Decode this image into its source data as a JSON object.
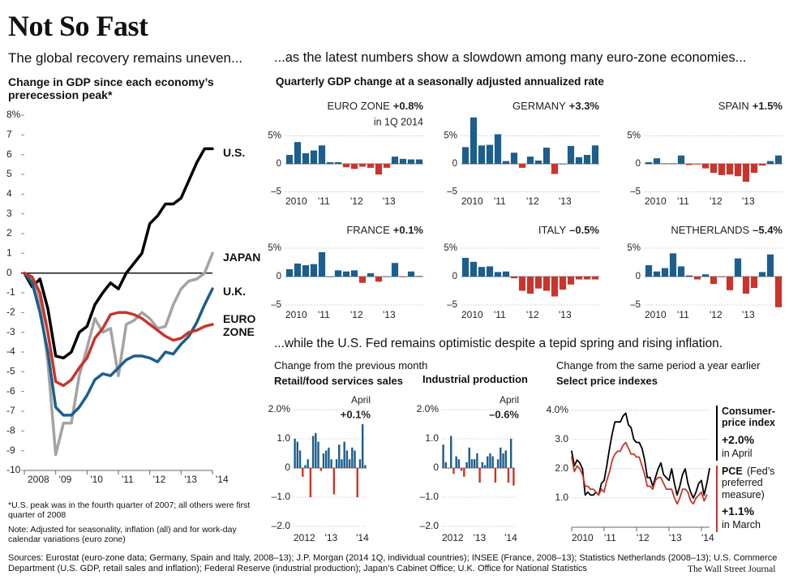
{
  "page": {
    "title": "Not So Fast",
    "subtitle_left": "The global recovery remains uneven...",
    "subtitle_middle": "...as the latest numbers show a slowdown among many euro-zone economies...",
    "section_title": "Quarterly GDP change at a seasonally adjusted annualized rate",
    "subtitle_bottom": "...while the U.S. Fed remains optimistic despite a tepid spring and rising inflation.",
    "monthly_heading": "Change from the previous month",
    "yearly_heading": "Change from the same period a year earlier",
    "footnote": "*U.S. peak was in the fourth quarter of 2007; all others were first quarter of 2008",
    "note": "Note: Adjusted for seasonality, inflation (all) and for work-day calendar variations (euro zone)",
    "sources": "Sources: Eurostat (euro-zone data; Germany, Spain and Italy, 2008–13); J.P. Morgan (2014 1Q, individual countries); INSEE (France, 2008–13); Statistics Netherlands (2008–13); U.S. Commerce Department (U.S. GDP, retail sales and inflation); Federal Reserve (industrial production); Japan’s Cabinet Office; U.K. Office for National Statistics",
    "credit": "The Wall Street Journal"
  },
  "chart_data": [
    {
      "type": "line",
      "title": "Change in GDP since each economy’s prerecession peak*",
      "categories": [
        "2008",
        null,
        null,
        null,
        "'09",
        null,
        null,
        null,
        "'10",
        null,
        null,
        null,
        "'11",
        null,
        null,
        null,
        "'12",
        null,
        null,
        null,
        "'13",
        null,
        null,
        null,
        "'14"
      ],
      "ylim": [
        -10,
        8
      ],
      "yticks": [
        {
          "value": 8,
          "label": "8%"
        },
        7,
        6,
        5,
        4,
        3,
        2,
        1,
        0,
        -1,
        -2,
        -3,
        -4,
        -5,
        -6,
        -7,
        -8,
        -9,
        -10
      ],
      "series": [
        {
          "name": "U.S.",
          "color": "#000000",
          "values": [
            0,
            -0.7,
            -0.3,
            -1.8,
            -4.2,
            -4.3,
            -4.0,
            -3.0,
            -2.7,
            -1.6,
            -1.0,
            -0.5,
            -0.8,
            0.0,
            0.5,
            1.0,
            2.5,
            2.9,
            3.5,
            3.5,
            3.8,
            4.7,
            5.6,
            6.3,
            6.3
          ]
        },
        {
          "name": "JAPAN",
          "color": "#a3a3a3",
          "values": [
            0,
            -0.3,
            -1.5,
            -4.5,
            -9.2,
            -7.6,
            -7.6,
            -5.2,
            -3.8,
            -2.3,
            -3.0,
            -2.8,
            -5.2,
            -2.6,
            -2.4,
            -2.0,
            -2.3,
            -2.8,
            -2.7,
            -1.6,
            -0.8,
            -0.4,
            -0.3,
            0.0,
            1.0
          ]
        },
        {
          "name": "U.K.",
          "color": "#1d5e8c",
          "values": [
            0,
            -0.5,
            -2.0,
            -4.0,
            -6.8,
            -7.2,
            -7.2,
            -6.8,
            -6.2,
            -5.4,
            -5.1,
            -5.2,
            -4.8,
            -4.4,
            -4.2,
            -4.2,
            -4.3,
            -4.5,
            -4.0,
            -4.1,
            -3.6,
            -3.2,
            -2.5,
            -1.6,
            -0.8
          ]
        },
        {
          "name": "EURO ZONE",
          "color": "#c9342c",
          "values": [
            0,
            -0.2,
            -1.0,
            -3.0,
            -5.5,
            -5.7,
            -5.4,
            -4.8,
            -4.3,
            -3.3,
            -2.8,
            -2.1,
            -2.0,
            -2.0,
            -2.1,
            -2.3,
            -2.6,
            -2.9,
            -3.2,
            -3.4,
            -3.3,
            -3.0,
            -2.9,
            -2.7,
            -2.6
          ]
        }
      ]
    },
    {
      "type": "bar",
      "title": "EURO ZONE",
      "value_label": "+0.8%",
      "note": "in 1Q 2014",
      "categories": [
        "2010",
        null,
        null,
        null,
        "'11",
        null,
        null,
        null,
        "'12",
        null,
        null,
        null,
        "'13",
        null,
        null,
        null,
        null
      ],
      "values": [
        1.6,
        3.9,
        1.9,
        2.4,
        3.3,
        0.3,
        0.3,
        -0.6,
        -0.9,
        -0.5,
        -0.7,
        -1.9,
        -0.7,
        1.3,
        0.9,
        0.8,
        0.8
      ],
      "color": "#1d5e8c",
      "negative_color": "#c9342c",
      "ylim": [
        -5.5,
        8.5
      ],
      "yticks": [
        {
          "value": 5,
          "label": "5%"
        },
        0,
        {
          "value": -5,
          "label": "–5"
        }
      ],
      "grid": true
    },
    {
      "type": "bar",
      "title": "GERMANY",
      "value_label": "+3.3%",
      "categories": [
        "2010",
        null,
        null,
        null,
        "'11",
        null,
        null,
        null,
        "'12",
        null,
        null,
        null,
        "'13",
        null,
        null,
        null,
        null
      ],
      "values": [
        3.0,
        8.3,
        3.3,
        3.4,
        5.3,
        0.5,
        2.0,
        -0.7,
        1.3,
        0.6,
        2.9,
        -1.8,
        0.0,
        3.2,
        1.2,
        1.6,
        3.3
      ],
      "color": "#1d5e8c",
      "negative_color": "#c9342c",
      "ylim": [
        -5.5,
        8.5
      ],
      "yticks": [
        {
          "value": 5,
          "label": "5%"
        },
        0,
        {
          "value": -5,
          "label": "–5"
        }
      ],
      "grid": true
    },
    {
      "type": "bar",
      "title": "SPAIN",
      "value_label": "+1.5%",
      "categories": [
        "2010",
        null,
        null,
        null,
        "'11",
        null,
        null,
        null,
        "'12",
        null,
        null,
        null,
        "'13",
        null,
        null,
        null,
        null
      ],
      "values": [
        0.3,
        1.0,
        0.1,
        0.1,
        1.5,
        -0.2,
        -0.1,
        -0.8,
        -1.6,
        -2.0,
        -1.9,
        -2.2,
        -3.2,
        -1.6,
        -0.3,
        0.5,
        1.5
      ],
      "color": "#1d5e8c",
      "negative_color": "#c9342c",
      "ylim": [
        -5.5,
        8.5
      ],
      "yticks": [
        {
          "value": 5,
          "label": "5%"
        },
        0,
        {
          "value": -5,
          "label": "–5"
        }
      ],
      "grid": true
    },
    {
      "type": "bar",
      "title": "FRANCE",
      "value_label": "+0.1%",
      "categories": [
        "2010",
        null,
        null,
        null,
        "'11",
        null,
        null,
        null,
        "'12",
        null,
        null,
        null,
        "'13",
        null,
        null,
        null,
        null
      ],
      "values": [
        1.3,
        2.3,
        2.0,
        2.2,
        4.3,
        0.0,
        1.1,
        0.9,
        1.1,
        -1.1,
        0.6,
        -0.9,
        0.0,
        2.4,
        -0.1,
        0.9,
        0.1
      ],
      "color": "#1d5e8c",
      "negative_color": "#c9342c",
      "ylim": [
        -5.5,
        8.5
      ],
      "yticks": [
        {
          "value": 5,
          "label": "5%"
        },
        0,
        {
          "value": -5,
          "label": "–5"
        }
      ],
      "grid": true
    },
    {
      "type": "bar",
      "title": "ITALY",
      "value_label": "–0.5%",
      "categories": [
        "2010",
        null,
        null,
        null,
        "'11",
        null,
        null,
        null,
        "'12",
        null,
        null,
        null,
        "'13",
        null,
        null,
        null,
        null
      ],
      "values": [
        3.3,
        2.6,
        1.7,
        1.8,
        0.8,
        0.9,
        -0.3,
        -2.5,
        -3.0,
        -2.1,
        -2.5,
        -3.5,
        -2.3,
        -1.4,
        -0.5,
        -0.5,
        -0.5
      ],
      "color": "#1d5e8c",
      "negative_color": "#c9342c",
      "ylim": [
        -5.5,
        8.5
      ],
      "yticks": [
        {
          "value": 5,
          "label": "5%"
        },
        0,
        {
          "value": -5,
          "label": "–5"
        }
      ],
      "grid": true
    },
    {
      "type": "bar",
      "title": "NETHERLANDS",
      "value_label": "–5.4%",
      "categories": [
        "2010",
        null,
        null,
        null,
        "'11",
        null,
        null,
        null,
        "'12",
        null,
        null,
        null,
        "'13",
        null,
        null,
        null,
        null
      ],
      "values": [
        2.0,
        0.9,
        1.5,
        4.1,
        1.8,
        0.2,
        -0.5,
        0.4,
        -1.3,
        -0.1,
        -2.4,
        3.2,
        -3.0,
        -2.0,
        0.8,
        3.9,
        -5.4
      ],
      "color": "#1d5e8c",
      "negative_color": "#c9342c",
      "ylim": [
        -5.5,
        8.5
      ],
      "yticks": [
        {
          "value": 5,
          "label": "5%"
        },
        0,
        {
          "value": -5,
          "label": "–5"
        }
      ],
      "grid": true
    },
    {
      "type": "bar",
      "title": "Retail/food services sales",
      "annotation": "April",
      "value_label": "+0.1%",
      "categories": [
        "2012",
        null,
        null,
        null,
        null,
        null,
        null,
        null,
        null,
        null,
        null,
        null,
        "'13",
        null,
        null,
        null,
        null,
        null,
        null,
        null,
        null,
        null,
        null,
        null,
        "'14",
        null,
        null,
        null
      ],
      "values": [
        1.0,
        0.9,
        0.6,
        -0.3,
        0.1,
        0.3,
        -1.0,
        1.1,
        1.2,
        0.9,
        -0.1,
        0.5,
        0.6,
        0.7,
        0.3,
        -0.9,
        0.3,
        0.8,
        0.3,
        0.9,
        0.6,
        0.3,
        0.7,
        0.6,
        -1.0,
        0.3,
        1.5,
        0.1
      ],
      "color": "#1d5e8c",
      "negative_color": "#c9342c",
      "ylim": [
        -2,
        2
      ],
      "yticks": [
        {
          "value": 2,
          "label": "2.0%"
        },
        {
          "value": 1,
          "label": "1.0"
        },
        0,
        {
          "value": -1,
          "label": "–1.0"
        },
        {
          "value": -2,
          "label": "–2.0"
        }
      ],
      "grid": true
    },
    {
      "type": "bar",
      "title": "Industrial production",
      "annotation": "April",
      "value_label": "–0.6%",
      "categories": [
        "2012",
        null,
        null,
        null,
        null,
        null,
        null,
        null,
        null,
        null,
        null,
        null,
        "'13",
        null,
        null,
        null,
        null,
        null,
        null,
        null,
        null,
        null,
        null,
        null,
        "'14",
        null,
        null,
        null
      ],
      "values": [
        0.8,
        0.2,
        0.0,
        1.1,
        -0.2,
        0.4,
        0.3,
        -0.1,
        -0.3,
        0.2,
        0.7,
        0.3,
        0.3,
        0.5,
        -0.5,
        0.2,
        0.1,
        0.4,
        0.5,
        0.4,
        -0.5,
        0.3,
        0.7,
        0.5,
        0.6,
        -0.5,
        1.0,
        -0.6
      ],
      "color": "#1d5e8c",
      "negative_color": "#c9342c",
      "ylim": [
        -2,
        2
      ],
      "yticks": [
        {
          "value": 2,
          "label": "2.0%"
        },
        {
          "value": 1,
          "label": "1.0"
        },
        0,
        {
          "value": -1,
          "label": "–1.0"
        },
        {
          "value": -2,
          "label": "–2.0"
        }
      ],
      "grid": true
    },
    {
      "type": "line",
      "title": "Select price indexes",
      "categories": [
        "2010",
        null,
        null,
        null,
        null,
        null,
        null,
        null,
        null,
        null,
        null,
        null,
        "'11",
        null,
        null,
        null,
        null,
        null,
        null,
        null,
        null,
        null,
        null,
        null,
        "'12",
        null,
        null,
        null,
        null,
        null,
        null,
        null,
        null,
        null,
        null,
        null,
        "'13",
        null,
        null,
        null,
        null,
        null,
        null,
        null,
        null,
        null,
        null,
        null,
        "'14",
        null,
        null,
        null
      ],
      "ylim": [
        0,
        4.3
      ],
      "yticks": [
        {
          "value": 4,
          "label": "4.0%"
        },
        {
          "value": 3,
          "label": "3.0"
        },
        {
          "value": 2,
          "label": "2.0"
        },
        {
          "value": 1,
          "label": "1.0"
        }
      ],
      "grid": true,
      "series": [
        {
          "name": "Consumer-price index",
          "value_label": "+2.0%",
          "note": "in April",
          "color": "#000000",
          "values": [
            2.6,
            2.1,
            2.3,
            2.2,
            2.0,
            1.1,
            1.2,
            1.1,
            1.1,
            1.2,
            1.1,
            1.5,
            1.6,
            2.1,
            2.7,
            3.2,
            3.6,
            3.6,
            3.6,
            3.8,
            3.9,
            3.5,
            3.4,
            3.0,
            2.9,
            2.9,
            2.7,
            2.3,
            1.7,
            1.7,
            1.4,
            1.7,
            2.0,
            2.2,
            1.8,
            1.7,
            1.6,
            2.0,
            1.5,
            1.1,
            1.4,
            1.8,
            2.0,
            1.5,
            1.2,
            1.0,
            1.2,
            1.5,
            1.6,
            1.1,
            1.5,
            2.0
          ]
        },
        {
          "name": "PCE",
          "description": "(Fed’s preferred measure)",
          "value_label": "+1.1%",
          "note": "in March",
          "color": "#c9342c",
          "values": [
            2.4,
            1.9,
            2.1,
            2.0,
            1.8,
            1.4,
            1.4,
            1.3,
            1.3,
            1.2,
            1.1,
            1.3,
            1.2,
            1.6,
            1.9,
            2.3,
            2.5,
            2.6,
            2.6,
            2.8,
            2.9,
            2.7,
            2.5,
            2.5,
            2.4,
            2.4,
            2.1,
            1.8,
            1.4,
            1.4,
            1.3,
            1.6,
            1.7,
            1.7,
            1.5,
            1.3,
            1.3,
            1.3,
            1.0,
            0.8,
            1.0,
            1.3,
            1.3,
            1.2,
            0.9,
            0.8,
            1.0,
            1.1,
            1.2,
            0.9,
            1.1,
            null
          ]
        }
      ]
    }
  ]
}
